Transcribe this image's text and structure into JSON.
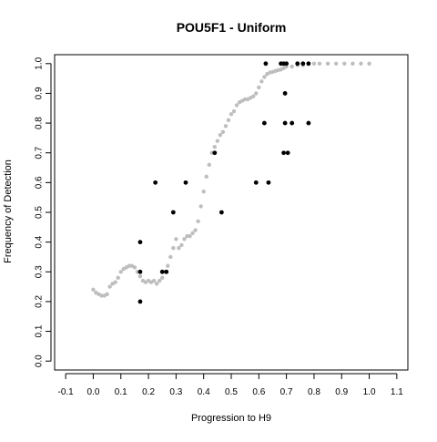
{
  "chart_data": {
    "type": "scatter",
    "title": "POU5F1 - Uniform",
    "xlabel": "Progression to H9",
    "ylabel": "Frequency of Detection",
    "xlim": [
      -0.14,
      1.14
    ],
    "ylim": [
      -0.03,
      1.03
    ],
    "x_ticks": [
      -0.1,
      0.0,
      0.1,
      0.2,
      0.3,
      0.4,
      0.5,
      0.6,
      0.7,
      0.8,
      0.9,
      1.0,
      1.1
    ],
    "x_tick_labels": [
      "-0.1",
      "0.0",
      "0.1",
      "0.2",
      "0.3",
      "0.4",
      "0.5",
      "0.6",
      "0.7",
      "0.8",
      "0.9",
      "1.0",
      "1.1"
    ],
    "y_ticks": [
      0.0,
      0.1,
      0.2,
      0.3,
      0.4,
      0.5,
      0.6,
      0.7,
      0.8,
      0.9,
      1.0
    ],
    "y_tick_labels": [
      "0.0",
      "0.1",
      "0.2",
      "0.3",
      "0.4",
      "0.5",
      "0.6",
      "0.7",
      "0.8",
      "0.9",
      "1.0"
    ],
    "grid": false,
    "colors": {
      "smooth": "#bebebe",
      "observed": "#000000",
      "axis": "#000000"
    },
    "series": [
      {
        "style": "smooth",
        "x": [
          0.0,
          0.01,
          0.02,
          0.03,
          0.04,
          0.05,
          0.06,
          0.07,
          0.08,
          0.09,
          0.1,
          0.11,
          0.12,
          0.13,
          0.14,
          0.15,
          0.16,
          0.17,
          0.18,
          0.19,
          0.2,
          0.21,
          0.22,
          0.23,
          0.24,
          0.25,
          0.26,
          0.27,
          0.28,
          0.29,
          0.3,
          0.31,
          0.32,
          0.33,
          0.34,
          0.35,
          0.36,
          0.37,
          0.38,
          0.39,
          0.4,
          0.41,
          0.42,
          0.43,
          0.44,
          0.45,
          0.46,
          0.47,
          0.48,
          0.49,
          0.5,
          0.51,
          0.52,
          0.53,
          0.54,
          0.55,
          0.56,
          0.57,
          0.58,
          0.59,
          0.6,
          0.61,
          0.62,
          0.63,
          0.64,
          0.65,
          0.66,
          0.67,
          0.68,
          0.69,
          0.7,
          0.72,
          0.74,
          0.76,
          0.78,
          0.8,
          0.82,
          0.85,
          0.88,
          0.91,
          0.94,
          0.97,
          1.0
        ],
        "y": [
          0.24,
          0.23,
          0.225,
          0.22,
          0.22,
          0.225,
          0.25,
          0.26,
          0.265,
          0.28,
          0.3,
          0.31,
          0.315,
          0.32,
          0.32,
          0.315,
          0.3,
          0.285,
          0.27,
          0.265,
          0.27,
          0.265,
          0.27,
          0.26,
          0.27,
          0.28,
          0.3,
          0.32,
          0.35,
          0.38,
          0.41,
          0.38,
          0.39,
          0.41,
          0.42,
          0.42,
          0.43,
          0.44,
          0.47,
          0.52,
          0.57,
          0.62,
          0.66,
          0.7,
          0.72,
          0.74,
          0.76,
          0.77,
          0.79,
          0.81,
          0.83,
          0.84,
          0.86,
          0.87,
          0.875,
          0.88,
          0.88,
          0.885,
          0.89,
          0.9,
          0.92,
          0.94,
          0.955,
          0.965,
          0.97,
          0.972,
          0.975,
          0.978,
          0.98,
          0.985,
          0.99,
          0.99,
          0.995,
          0.995,
          1.0,
          1.0,
          1.0,
          1.0,
          1.0,
          1.0,
          1.0,
          1.0,
          1.0
        ]
      },
      {
        "style": "observed",
        "x": [
          0.17,
          0.17,
          0.17,
          0.225,
          0.25,
          0.265,
          0.29,
          0.335,
          0.44,
          0.465,
          0.59,
          0.62,
          0.625,
          0.635,
          0.68,
          0.69,
          0.69,
          0.695,
          0.695,
          0.7,
          0.705,
          0.72,
          0.74,
          0.76,
          0.78,
          0.78
        ],
        "y": [
          0.4,
          0.3,
          0.2,
          0.6,
          0.3,
          0.3,
          0.5,
          0.6,
          0.7,
          0.5,
          0.6,
          0.8,
          1.0,
          0.6,
          1.0,
          1.0,
          0.7,
          0.9,
          0.8,
          1.0,
          0.7,
          0.8,
          1.0,
          1.0,
          0.8,
          1.0
        ]
      }
    ]
  }
}
